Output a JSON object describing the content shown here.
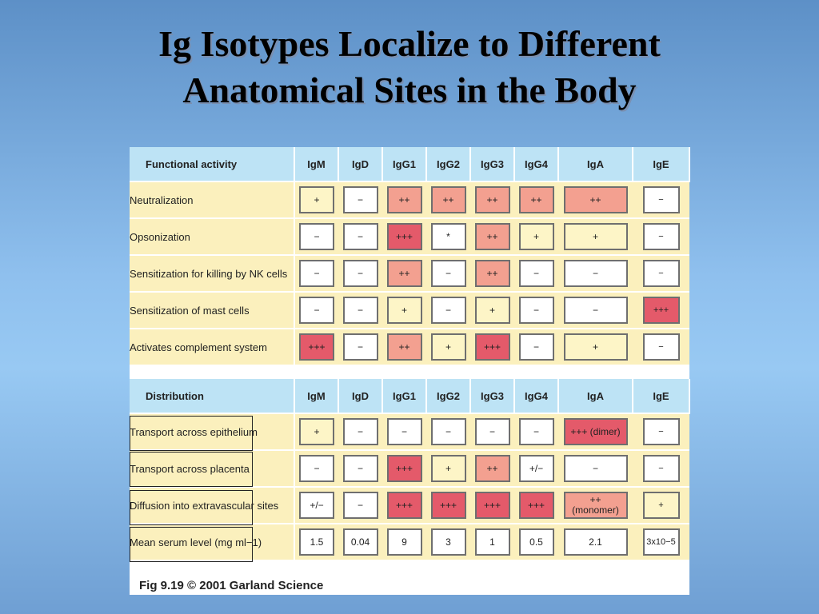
{
  "slide": {
    "title_line1": "Ig Isotypes Localize to Different",
    "title_line2": "Anatomical Sites in the Body"
  },
  "isotypes": [
    "IgM",
    "IgD",
    "IgG1",
    "IgG2",
    "IgG3",
    "IgG4",
    "IgA",
    "IgE"
  ],
  "functional": {
    "header": "Functional activity",
    "rows": [
      {
        "label": "Neutralization",
        "cells": [
          {
            "v": "+",
            "c": "low"
          },
          {
            "v": "−",
            "c": "none"
          },
          {
            "v": "++",
            "c": "mid"
          },
          {
            "v": "++",
            "c": "mid"
          },
          {
            "v": "++",
            "c": "mid"
          },
          {
            "v": "++",
            "c": "mid"
          },
          {
            "v": "++",
            "c": "mid"
          },
          {
            "v": "−",
            "c": "none"
          }
        ]
      },
      {
        "label": "Opsonization",
        "cells": [
          {
            "v": "−",
            "c": "none"
          },
          {
            "v": "−",
            "c": "none"
          },
          {
            "v": "+++",
            "c": "high"
          },
          {
            "v": "*",
            "c": "none"
          },
          {
            "v": "++",
            "c": "mid"
          },
          {
            "v": "+",
            "c": "low"
          },
          {
            "v": "+",
            "c": "low"
          },
          {
            "v": "−",
            "c": "none"
          }
        ]
      },
      {
        "label": "Sensitization for killing by NK cells",
        "cells": [
          {
            "v": "−",
            "c": "none"
          },
          {
            "v": "−",
            "c": "none"
          },
          {
            "v": "++",
            "c": "mid"
          },
          {
            "v": "−",
            "c": "none"
          },
          {
            "v": "++",
            "c": "mid"
          },
          {
            "v": "−",
            "c": "none"
          },
          {
            "v": "−",
            "c": "none"
          },
          {
            "v": "−",
            "c": "none"
          }
        ]
      },
      {
        "label": "Sensitization of mast cells",
        "cells": [
          {
            "v": "−",
            "c": "none"
          },
          {
            "v": "−",
            "c": "none"
          },
          {
            "v": "+",
            "c": "low"
          },
          {
            "v": "−",
            "c": "none"
          },
          {
            "v": "+",
            "c": "low"
          },
          {
            "v": "−",
            "c": "none"
          },
          {
            "v": "−",
            "c": "none"
          },
          {
            "v": "+++",
            "c": "high"
          }
        ]
      },
      {
        "label": "Activates complement system",
        "cells": [
          {
            "v": "+++",
            "c": "high"
          },
          {
            "v": "−",
            "c": "none"
          },
          {
            "v": "++",
            "c": "mid"
          },
          {
            "v": "+",
            "c": "low"
          },
          {
            "v": "+++",
            "c": "high"
          },
          {
            "v": "−",
            "c": "none"
          },
          {
            "v": "+",
            "c": "low"
          },
          {
            "v": "−",
            "c": "none"
          }
        ]
      }
    ]
  },
  "distribution": {
    "header": "Distribution",
    "rows": [
      {
        "label": "Transport across epithelium",
        "cells": [
          {
            "v": "+",
            "c": "low"
          },
          {
            "v": "−",
            "c": "none"
          },
          {
            "v": "−",
            "c": "none"
          },
          {
            "v": "−",
            "c": "none"
          },
          {
            "v": "−",
            "c": "none"
          },
          {
            "v": "−",
            "c": "none"
          },
          {
            "v": "+++ (dimer)",
            "c": "high"
          },
          {
            "v": "−",
            "c": "none"
          }
        ]
      },
      {
        "label": "Transport across placenta",
        "cells": [
          {
            "v": "−",
            "c": "none"
          },
          {
            "v": "−",
            "c": "none"
          },
          {
            "v": "+++",
            "c": "high"
          },
          {
            "v": "+",
            "c": "low"
          },
          {
            "v": "++",
            "c": "mid"
          },
          {
            "v": "+/−",
            "c": "none"
          },
          {
            "v": "−",
            "c": "none"
          },
          {
            "v": "−",
            "c": "none"
          }
        ]
      },
      {
        "label": "Diffusion into extravascular sites",
        "cells": [
          {
            "v": "+/−",
            "c": "none"
          },
          {
            "v": "−",
            "c": "none"
          },
          {
            "v": "+++",
            "c": "high"
          },
          {
            "v": "+++",
            "c": "high"
          },
          {
            "v": "+++",
            "c": "high"
          },
          {
            "v": "+++",
            "c": "high"
          },
          {
            "v": "++ (monomer)",
            "c": "mid"
          },
          {
            "v": "+",
            "c": "low"
          }
        ]
      },
      {
        "label": "Mean serum level (mg ml−1)",
        "cells": [
          {
            "v": "1.5",
            "c": "none"
          },
          {
            "v": "0.04",
            "c": "none"
          },
          {
            "v": "9",
            "c": "none"
          },
          {
            "v": "3",
            "c": "none"
          },
          {
            "v": "1",
            "c": "none"
          },
          {
            "v": "0.5",
            "c": "none"
          },
          {
            "v": "2.1",
            "c": "none"
          },
          {
            "v": "3x10−5",
            "c": "none"
          }
        ]
      }
    ]
  },
  "caption": "Fig 9.19  © 2001 Garland Science",
  "colors": {
    "none": "#ffffff",
    "low": "#fdf5c7",
    "mid": "#f3a090",
    "high": "#e45a6a",
    "header_bg": "#bde3f5",
    "label_bg": "#fbf0bd"
  }
}
